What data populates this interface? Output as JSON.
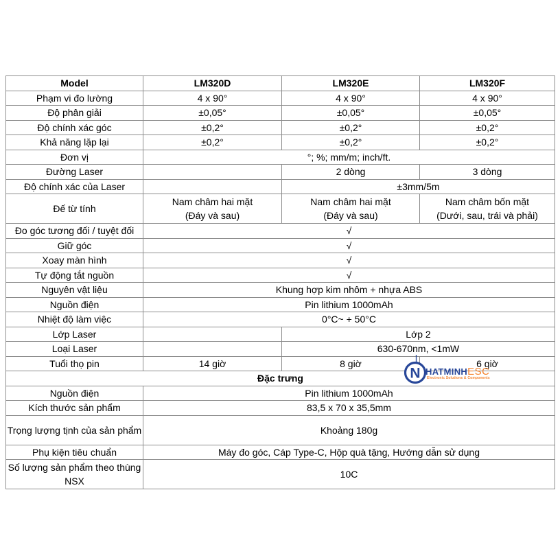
{
  "page": {
    "background": "#ffffff"
  },
  "table": {
    "border_color": "#8c8c8c",
    "columns": [
      "Model",
      "LM320D",
      "LM320E",
      "LM320F"
    ],
    "rows": [
      {
        "bold": true,
        "tall": false,
        "cells": [
          {
            "t": "Model",
            "s": 1
          },
          {
            "t": "LM320D",
            "s": 1
          },
          {
            "t": "LM320E",
            "s": 1
          },
          {
            "t": "LM320F",
            "s": 1
          }
        ]
      },
      {
        "bold": false,
        "tall": false,
        "cells": [
          {
            "t": "Phạm vi đo lường",
            "s": 1
          },
          {
            "t": "4 x 90°",
            "s": 1
          },
          {
            "t": "4 x 90°",
            "s": 1
          },
          {
            "t": "4 x 90°",
            "s": 1
          }
        ]
      },
      {
        "bold": false,
        "tall": false,
        "cells": [
          {
            "t": "Độ phân giải",
            "s": 1
          },
          {
            "t": "±0,05°",
            "s": 1
          },
          {
            "t": "±0,05°",
            "s": 1
          },
          {
            "t": "±0,05°",
            "s": 1
          }
        ]
      },
      {
        "bold": false,
        "tall": false,
        "cells": [
          {
            "t": "Độ chính xác góc",
            "s": 1
          },
          {
            "t": "±0,2°",
            "s": 1
          },
          {
            "t": "±0,2°",
            "s": 1
          },
          {
            "t": "±0,2°",
            "s": 1
          }
        ]
      },
      {
        "bold": false,
        "tall": false,
        "cells": [
          {
            "t": "Khả năng lặp lại",
            "s": 1
          },
          {
            "t": "±0,2°",
            "s": 1
          },
          {
            "t": "±0,2°",
            "s": 1
          },
          {
            "t": "±0,2°",
            "s": 1
          }
        ]
      },
      {
        "bold": false,
        "tall": false,
        "cells": [
          {
            "t": "Đơn vị",
            "s": 1
          },
          {
            "t": "°; %; mm/m; inch/ft.",
            "s": 3
          }
        ]
      },
      {
        "bold": false,
        "tall": false,
        "cells": [
          {
            "t": "Đường Laser",
            "s": 1
          },
          {
            "t": "",
            "s": 1
          },
          {
            "t": "2 dòng",
            "s": 1
          },
          {
            "t": "3 dòng",
            "s": 1
          }
        ]
      },
      {
        "bold": false,
        "tall": false,
        "cells": [
          {
            "t": "Độ chính xác của Laser",
            "s": 1
          },
          {
            "t": "",
            "s": 1
          },
          {
            "t": "±3mm/5m",
            "s": 2
          }
        ]
      },
      {
        "bold": false,
        "tall": true,
        "cells": [
          {
            "t": "Đế từ tính",
            "s": 1
          },
          {
            "t": "Nam châm hai mặt\n(Đáy và sau)",
            "s": 1
          },
          {
            "t": "Nam châm hai mặt\n(Đáy và sau)",
            "s": 1
          },
          {
            "t": "Nam châm bốn mặt\n(Dưới, sau, trái và phải)",
            "s": 1
          }
        ]
      },
      {
        "bold": false,
        "tall": false,
        "cells": [
          {
            "t": "Đo góc tương đối / tuyệt đối",
            "s": 1
          },
          {
            "t": "√",
            "s": 3
          }
        ]
      },
      {
        "bold": false,
        "tall": false,
        "cells": [
          {
            "t": "Giữ góc",
            "s": 1
          },
          {
            "t": "√",
            "s": 3
          }
        ]
      },
      {
        "bold": false,
        "tall": false,
        "cells": [
          {
            "t": "Xoay màn hình",
            "s": 1
          },
          {
            "t": "√",
            "s": 3
          }
        ]
      },
      {
        "bold": false,
        "tall": false,
        "cells": [
          {
            "t": "Tự động tắt nguồn",
            "s": 1
          },
          {
            "t": "√",
            "s": 3
          }
        ]
      },
      {
        "bold": false,
        "tall": false,
        "cells": [
          {
            "t": "Nguyên vật liệu",
            "s": 1
          },
          {
            "t": "Khung hợp kim nhôm + nhựa ABS",
            "s": 3
          }
        ]
      },
      {
        "bold": false,
        "tall": false,
        "cells": [
          {
            "t": "Nguồn điện",
            "s": 1
          },
          {
            "t": "Pin lithium 1000mAh",
            "s": 3
          }
        ]
      },
      {
        "bold": false,
        "tall": false,
        "cells": [
          {
            "t": "Nhiệt độ làm việc",
            "s": 1
          },
          {
            "t": "0°C~ + 50°C",
            "s": 3
          }
        ]
      },
      {
        "bold": false,
        "tall": false,
        "cells": [
          {
            "t": "Lớp Laser",
            "s": 1
          },
          {
            "t": "",
            "s": 1
          },
          {
            "t": "Lớp 2",
            "s": 2
          }
        ]
      },
      {
        "bold": false,
        "tall": false,
        "cells": [
          {
            "t": "Loại Laser",
            "s": 1
          },
          {
            "t": "",
            "s": 1
          },
          {
            "t": "630-670nm, <1mW",
            "s": 2
          }
        ]
      },
      {
        "bold": false,
        "tall": false,
        "cells": [
          {
            "t": "Tuổi thọ pin",
            "s": 1
          },
          {
            "t": "14 giờ",
            "s": 1
          },
          {
            "t": "8 giờ",
            "s": 1
          },
          {
            "t": "6 giờ",
            "s": 1
          }
        ]
      },
      {
        "bold": true,
        "tall": false,
        "cells": [
          {
            "t": "Đặc trưng",
            "s": 4
          }
        ]
      },
      {
        "bold": false,
        "tall": false,
        "cells": [
          {
            "t": "Nguồn điện",
            "s": 1
          },
          {
            "t": "Pin lithium 1000mAh",
            "s": 3
          }
        ]
      },
      {
        "bold": false,
        "tall": false,
        "cells": [
          {
            "t": "Kích thước sản phẩm",
            "s": 1
          },
          {
            "t": "83,5 x 70 x 35,5mm",
            "s": 3
          }
        ]
      },
      {
        "bold": false,
        "tall": true,
        "cells": [
          {
            "t": "Trọng lượng tịnh của sản phẩm",
            "s": 1
          },
          {
            "t": "Khoảng 180g",
            "s": 3
          }
        ]
      },
      {
        "bold": false,
        "tall": false,
        "cells": [
          {
            "t": "Phụ kiện tiêu chuẩn",
            "s": 1
          },
          {
            "t": "Máy đo góc, Cáp Type-C, Hộp quà tặng, Hướng dẫn sử dụng",
            "s": 3
          }
        ]
      },
      {
        "bold": false,
        "tall": true,
        "cells": [
          {
            "t": "Số lượng sản phẩm theo thùng NSX",
            "s": 1
          },
          {
            "t": "10C",
            "s": 3
          }
        ]
      }
    ]
  },
  "watermark": {
    "letter": "N",
    "text_primary": "HATMINH",
    "text_secondary": "ESC",
    "tagline": "Electronic Solutions & Components",
    "navy": "#1d3e94",
    "orange": "#f47b20"
  }
}
